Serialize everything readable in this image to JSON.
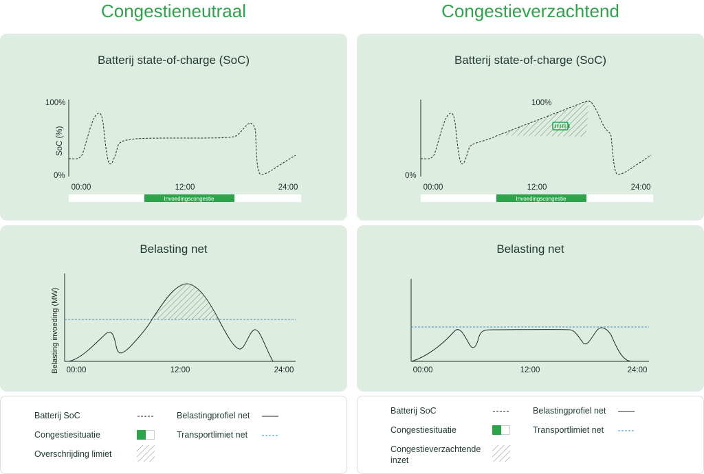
{
  "left": {
    "heading": "Congestieneutraal",
    "soc_title": "Batterij state-of-charge (SoC)",
    "soc_ylabel": "SoC (%)",
    "soc_ytick_top": "100%",
    "soc_ytick_bottom": "0%",
    "congestion_label": "Invoedingscongestie",
    "grid_title": "Belasting net",
    "grid_ylabel": "Belasting invoeding (MW)",
    "x_ticks": [
      "00:00",
      "12:00",
      "24:00"
    ]
  },
  "right": {
    "heading": "Congestieverzachtend",
    "soc_title": "Batterij state-of-charge (SoC)",
    "soc_peak_label": "100%",
    "soc_ytick_bottom": "0%",
    "congestion_label": "Invoedingscongestie",
    "grid_title": "Belasting net",
    "x_ticks": [
      "00:00",
      "12:00",
      "24:00"
    ]
  },
  "legend_left": {
    "soc": "Batterij SoC",
    "profile": "Belastingprofiel net",
    "congestion": "Congestiesituatie",
    "transport": "Transportlimiet net",
    "exceed": "Overschrijding limiet"
  },
  "legend_right": {
    "soc": "Batterij SoC",
    "profile": "Belastingprofiel net",
    "congestion": "Congestiesituatie",
    "transport": "Transportlimiet net",
    "mitigation": "Congestieverzachtende inzet"
  },
  "colors": {
    "brand_green": "#2ca44a",
    "panel_bg": "#deede1",
    "transport_limit": "#3a8fc9",
    "curve": "#1e2a24"
  }
}
